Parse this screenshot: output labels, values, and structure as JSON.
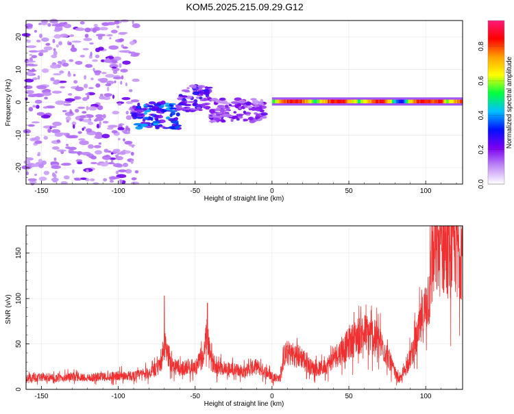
{
  "title": "KOM5.2025.215.09.29.G12",
  "colors": {
    "snr_line": "#f03030",
    "axis": "#000000",
    "grid": "#e6e6e6",
    "colormap": [
      "#ffffff",
      "#c08af7",
      "#7a00f0",
      "#0010ff",
      "#00c0ff",
      "#00ff40",
      "#ffff00",
      "#ffa000",
      "#ff0000",
      "#ff1a7a"
    ]
  },
  "chart_data": [
    {
      "type": "heatmap",
      "xlabel": "Height of straight line (km)",
      "ylabel": "Frequency (Hz)",
      "xlim": [
        -160,
        124
      ],
      "ylim": [
        -25,
        25
      ],
      "x_ticks": [
        -150,
        -100,
        -50,
        0,
        50,
        100
      ],
      "y_ticks": [
        -20,
        -10,
        0,
        10,
        20
      ],
      "colorbar": {
        "label": "Normalized spectral amplitude",
        "range": [
          0,
          0.95
        ],
        "ticks": [
          0.0,
          0.2,
          0.4,
          0.6,
          0.8
        ]
      },
      "features": [
        {
          "x_range": [
            -160,
            -88
          ],
          "freq_range": [
            -25,
            25
          ],
          "amplitude": 0.1,
          "description_level": "sparse weak speckle"
        },
        {
          "x_range": [
            -90,
            -60
          ],
          "freq_range": [
            -8,
            0
          ],
          "amplitude": 0.35
        },
        {
          "x_range": [
            -60,
            -40
          ],
          "freq_range": [
            -3,
            5
          ],
          "amplitude": 0.25
        },
        {
          "x_range": [
            -40,
            -5
          ],
          "freq_range": [
            -6,
            1
          ],
          "amplitude": 0.2
        },
        {
          "x_range": [
            0,
            124
          ],
          "freq_range": [
            -1,
            1.5
          ],
          "amplitude": 0.85,
          "peak_x": 110
        }
      ]
    },
    {
      "type": "line",
      "xlabel": "Height of straight line (km)",
      "ylabel": "SNR (v/v)",
      "xlim": [
        -160,
        124
      ],
      "ylim": [
        0,
        180
      ],
      "x_ticks": [
        -150,
        -100,
        -50,
        0,
        50,
        100
      ],
      "y_ticks": [
        0,
        50,
        100,
        150
      ],
      "series": [
        {
          "color": "#f03030",
          "x": [
            -160,
            -150,
            -140,
            -130,
            -120,
            -110,
            -100,
            -90,
            -80,
            -75,
            -72,
            -70,
            -65,
            -60,
            -55,
            -50,
            -45,
            -42,
            -40,
            -35,
            -30,
            -25,
            -20,
            -15,
            -10,
            -5,
            0,
            5,
            8,
            10,
            15,
            20,
            25,
            30,
            35,
            40,
            45,
            50,
            55,
            60,
            65,
            70,
            75,
            80,
            83,
            85,
            90,
            95,
            100,
            103,
            105,
            110,
            115,
            120,
            124
          ],
          "y": [
            12,
            13,
            12,
            14,
            13,
            14,
            15,
            15,
            18,
            22,
            30,
            48,
            28,
            22,
            25,
            24,
            35,
            60,
            32,
            25,
            23,
            22,
            20,
            22,
            25,
            20,
            15,
            12,
            38,
            40,
            38,
            35,
            25,
            22,
            25,
            35,
            42,
            50,
            58,
            62,
            60,
            52,
            38,
            18,
            10,
            15,
            35,
            60,
            90,
            115,
            150,
            158,
            155,
            160,
            152
          ],
          "spikes": [
            {
              "x": -70,
              "y": 103
            },
            {
              "x": -42,
              "y": 95
            },
            {
              "x": 104,
              "y": 180
            }
          ]
        }
      ]
    }
  ]
}
